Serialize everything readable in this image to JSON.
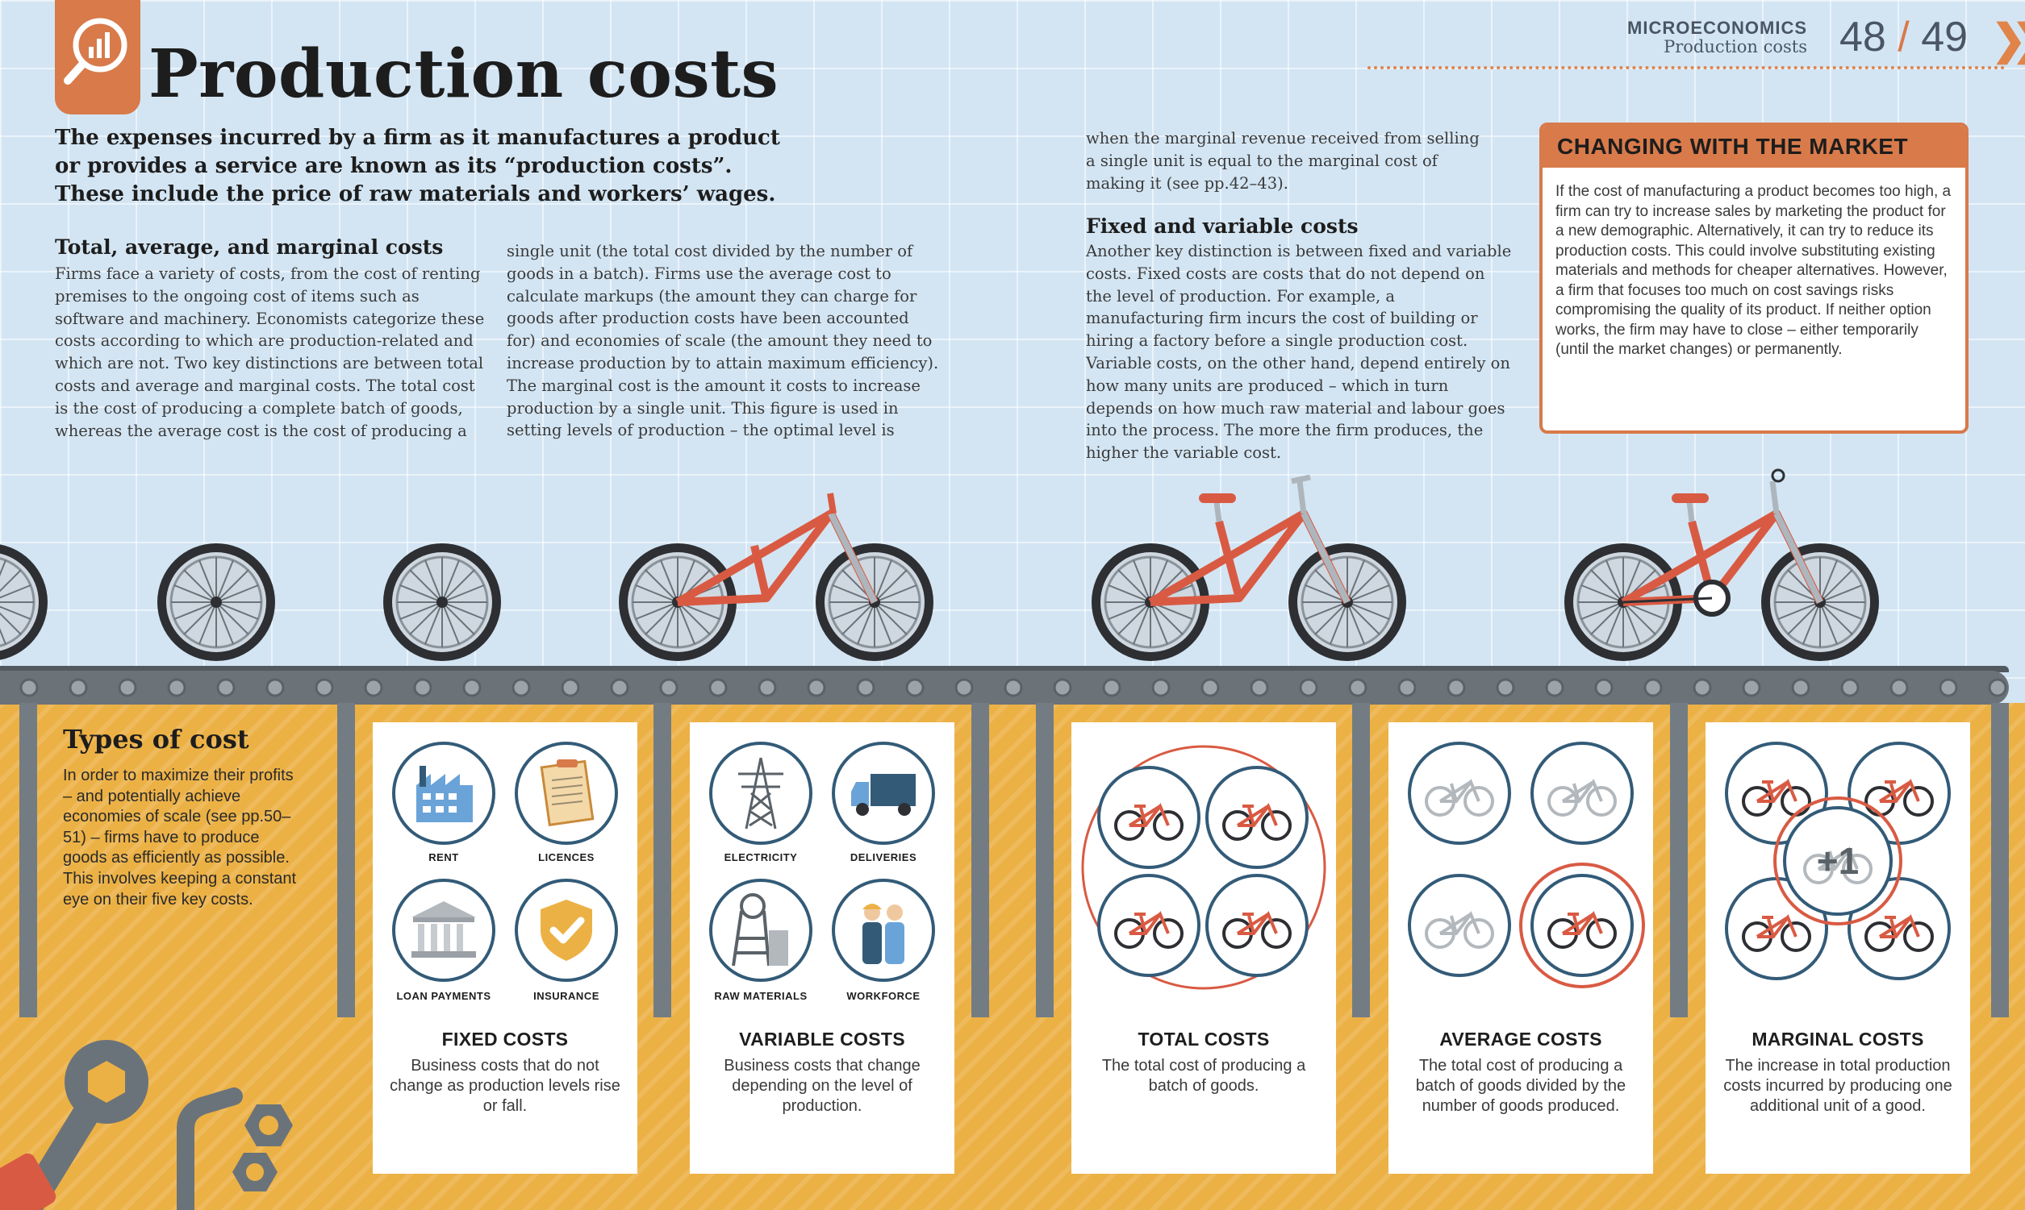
{
  "header": {
    "title": "Production costs",
    "section": "MICROECONOMICS",
    "section_sub": "Production costs",
    "page_left": "48",
    "page_sep": "/",
    "page_right": "49",
    "icon": "chart-magnifier-icon",
    "next_icon": "double-chevron-right-icon"
  },
  "intro": "The expenses incurred by a firm as it manufactures a product or provides a service are known as its “production costs”. These include the price of raw materials and workers’ wages.",
  "section1": {
    "heading": "Total, average, and marginal costs",
    "col1": "Firms face a variety of costs, from the cost of renting premises to the ongoing cost of items such as software and machinery. Economists categorize these costs according to which are production-related and which are not. Two key distinctions are between total costs and average and marginal costs. The total cost is the cost of producing a complete batch of goods, whereas the average cost is the cost of producing a",
    "col2": "single unit (the total cost divided by the number of goods in a batch). Firms use the average cost to calculate markups (the amount they can charge for goods after production costs have been accounted for) and economies of scale (the amount they need to increase production by to attain maximum efficiency). The marginal cost is the amount it costs to increase production by a single unit. This figure is used in setting levels of production – the optimal level is"
  },
  "section2": {
    "lead": "when the marginal revenue received from selling a single unit is equal to the marginal cost of making it (see pp.42–43).",
    "heading": "Fixed and variable costs",
    "body": "Another key distinction is between fixed and variable costs. Fixed costs are costs that do not depend on the level of production. For example, a manufacturing firm incurs the cost of building or hiring a factory before a single production cost. Variable costs, on the other hand, depend entirely on how many units are produced – which in turn depends on how much raw material and labour goes into the process. The more the firm produces, the higher the variable cost."
  },
  "sidebar": {
    "title": "CHANGING WITH THE MARKET",
    "body": "If the cost of manufacturing a product becomes too high, a firm can try to increase sales by marketing the product for a new demographic. Alternatively, it can try to reduce its production costs. This could involve substituting existing materials and methods for cheaper alternatives. However, a firm that focuses too much on cost savings risks compromising the quality of its product. If neither option works, the firm may have to close – either temporarily (until the market changes) or permanently."
  },
  "types": {
    "title": "Types of cost",
    "body": "In order to maximize their profits – and potentially achieve economies of scale (see pp.50–51) – firms have to produce goods as efficiently as possible. This involves keeping a constant eye on their five key costs."
  },
  "cards": [
    {
      "title": "FIXED COSTS",
      "desc": "Business costs that do not change as production levels rise or fall.",
      "icons": [
        {
          "label": "RENT",
          "icon": "factory-icon"
        },
        {
          "label": "LICENCES",
          "icon": "clipboard-icon"
        },
        {
          "label": "LOAN PAYMENTS",
          "icon": "bank-icon"
        },
        {
          "label": "INSURANCE",
          "icon": "shield-check-icon"
        }
      ]
    },
    {
      "title": "VARIABLE COSTS",
      "desc": "Business costs that change depending on the level of production.",
      "icons": [
        {
          "label": "ELECTRICITY",
          "icon": "pylon-icon"
        },
        {
          "label": "DELIVERIES",
          "icon": "truck-icon"
        },
        {
          "label": "RAW MATERIALS",
          "icon": "mine-icon"
        },
        {
          "label": "WORKFORCE",
          "icon": "workers-icon"
        }
      ]
    },
    {
      "title": "TOTAL COSTS",
      "desc": "The total cost of producing a batch of goods.",
      "icon": "bicycle-icon"
    },
    {
      "title": "AVERAGE COSTS",
      "desc": "The total cost of producing a batch of goods divided by the number of goods produced.",
      "icon": "bicycle-icon"
    },
    {
      "title": "MARGINAL COSTS",
      "desc": "The increase in total production costs incurred by producing one additional unit of a good.",
      "badge": "+1",
      "icon": "bicycle-icon"
    }
  ],
  "colors": {
    "accent": "#d87a4a",
    "navy": "#335b78",
    "floor": "#ecb145",
    "background": "#d3e5f3"
  }
}
